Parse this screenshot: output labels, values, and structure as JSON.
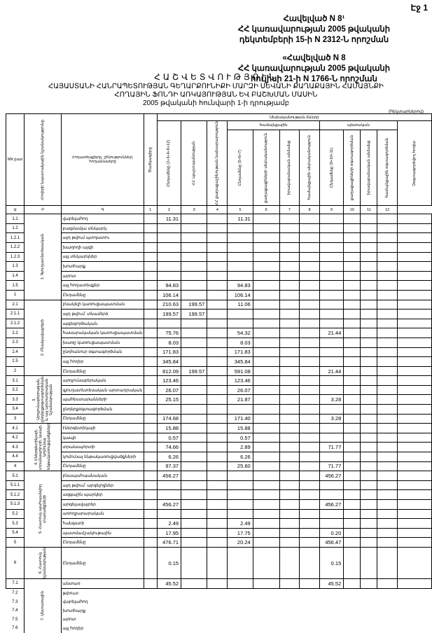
{
  "page_label": "Էջ 1",
  "annex1": {
    "line1": "Հավելված N 8¹",
    "line2": "ՀՀ կառավարության 2005 թվականի",
    "line3": "դեկտեմբերի 15-ի N 2312-Ն որոշման"
  },
  "annex2": {
    "line1": "«Հավելված N 8",
    "line2": "ՀՀ կառավարության 2005 թվականի",
    "line3": "հուլիսի 21-ի N 1766-Ն որոշման"
  },
  "title": "ՀԱՇՎԵՏՎՈՒԹՅՈՒՆ",
  "subtitle1": "ՀԱՅԱՍՏԱՆԻ ՀԱՆՐԱՊԵՏՈՒԹՅԱՆ ԳԵՂԱՐՔՈՒՆԻՔԻ ՄԱՐԶԻ ՍԵՎԱՆԻ ՔԱՂԱՔԱՅԻՆ ՀԱՄԱՅՆՔԻ",
  "subtitle2": "ՀՈՂԱՅԻՆ ՖՈՆԴԻ ԱՌԿԱՅՈՒԹՅԱՆ ԵՎ ԲԱՇԽՄԱՆ ՄԱՍԻՆ",
  "subtitle3": "2005 թվականի հունվարի 1-ի դրությամբ",
  "unit": "(հեկտարներով)",
  "header": {
    "nn": "NN ըստ",
    "purpose": "Հողերի նպատակային նշանակությունը",
    "landtype": "Հողատեսքերը, շինություններ, հողամասերը",
    "code": "Ծածկագիրը",
    "col1": "Ընդամենը (2+3+4+8+12)",
    "col2": "ՀՀ պաշտպանության",
    "col3": "ՀՀ քաղաքաշինության նախարարություն",
    "ownership": "Սեփականության ձևերը",
    "community": "համայնքային",
    "state": "պետական",
    "col4": "Ընդամենը (5+6+7)",
    "col5": "քաղաքացիների սեփականություն",
    "col6": "իրավաբանական անձանց",
    "col7": "համայնքային սեփականություն",
    "col8": "Ընդամենը (9+10+11)",
    "col9": "քաղաքացիների օգտագործման",
    "col10": "իրավաբանական անձանց",
    "col11": "համայնքային օգտագործման",
    "col12": "Չօգտագործվող հողեր",
    "nums": [
      "Ա",
      "Բ",
      "Գ",
      "1",
      "2",
      "3",
      "4",
      "5",
      "6",
      "7",
      "8",
      "9",
      "10",
      "11",
      "12"
    ]
  },
  "groups": [
    {
      "label": "1. Գյուղատնտեսական",
      "rows": [
        {
          "code": "1.1",
          "name": "վարելահող",
          "v1": "11.31",
          "v4": "11.31"
        },
        {
          "code": "1.2",
          "name": "բազմամյա տնկարկ"
        },
        {
          "code": "1.2.1",
          "name": "այդ թվում պտղատու"
        },
        {
          "code": "1.2.2",
          "name": "խաղողի այգի"
        },
        {
          "code": "1.2.3",
          "name": "այլ տնկարկներ"
        },
        {
          "code": "1.3",
          "name": "խոտհարք"
        },
        {
          "code": "1.4",
          "name": "արոտ"
        },
        {
          "code": "1.5",
          "name": "այլ հողատեսքեր",
          "v1": "94.83",
          "v4": "94.83"
        },
        {
          "code": "1",
          "name": "Ընդամենը",
          "v1": "106.14",
          "v4": "106.14"
        }
      ]
    },
    {
      "label": "2. Բնակավայրերի",
      "rows": [
        {
          "code": "2.1",
          "name": "բնակելի կառուցապատման",
          "v1": "210.63",
          "v2": "199.57",
          "v4": "11.06"
        },
        {
          "code": "2.1.1",
          "name": "այդ թվում՝ տնամերձ",
          "v1": "199.57",
          "v2": "199.57"
        },
        {
          "code": "2.1.2",
          "name": "այգեգործական"
        },
        {
          "code": "2.2",
          "name": "հասարակական կառուցապատման",
          "v1": "75.76",
          "v4": "54.32",
          "v8": "21.44"
        },
        {
          "code": "2.3",
          "name": "խառը կառուցապատման",
          "v1": "8.03",
          "v4": "8.03"
        },
        {
          "code": "2.4",
          "name": "ընդհանուր օգտագործման",
          "v1": "171.83",
          "v4": "171.83"
        },
        {
          "code": "2.5",
          "name": "այլ հողեր",
          "v1": "345.84",
          "v4": "345.84"
        },
        {
          "code": "2",
          "name": "Ընդամենը",
          "v1": "812.09",
          "v2": "199.57",
          "v4": "591.08",
          "v8": "21.44"
        }
      ]
    },
    {
      "label": "3. Արդյունաբերության, ընդերքօգտագործման և այլ արտադրական նշանակության",
      "rows": [
        {
          "code": "3.1",
          "name": "արդյունաբերական",
          "v1": "123.46",
          "v4": "123.46"
        },
        {
          "code": "3.2",
          "name": "գյուղատնտեսական արտադրական",
          "v1": "26.07",
          "v4": "26.07"
        },
        {
          "code": "3.3",
          "name": "պահեստարանների",
          "v1": "25.15",
          "v4": "21.87",
          "v8": "3.28"
        },
        {
          "code": "3.4",
          "name": "ընդերքօգտագործման"
        },
        {
          "code": "3",
          "name": "Ընդամենը",
          "v1": "174.68",
          "v4": "171.40",
          "v8": "3.28"
        }
      ]
    },
    {
      "label": "4. Էներգետիկայի, տրանսպորտի, կապի, կոմունալ ենթակառուցվածքների",
      "rows": [
        {
          "code": "4.1",
          "name": "էներգետիկայի",
          "v1": "15.88",
          "v4": "15.88"
        },
        {
          "code": "4.2",
          "name": "կապի",
          "v1": "0.57",
          "v4": "0.57"
        },
        {
          "code": "4.3",
          "name": "տրանսպորտի",
          "v1": "74.66",
          "v4": "2.89",
          "v8": "71.77"
        },
        {
          "code": "4.4",
          "name": "կոմունալ ենթակառուցվածքների",
          "v1": "6.26",
          "v4": "6.26"
        },
        {
          "code": "4",
          "name": "Ընդամենը",
          "v1": "97.37",
          "v4": "25.60",
          "v8": "71.77"
        }
      ]
    },
    {
      "label": "5. Հատուկ պահպանվող տարածքների",
      "rows": [
        {
          "code": "5.1",
          "name": "բնապահպանական",
          "v1": "456.27",
          "v8": "456.27"
        },
        {
          "code": "5.1.1",
          "name": "այդ թվում՝ արգելոցներ"
        },
        {
          "code": "5.1.2",
          "name": "ազգային պարկեր"
        },
        {
          "code": "5.1.3",
          "name": "արգելավայրեր",
          "v1": "456.27",
          "v8": "456.27"
        },
        {
          "code": "5.2",
          "name": "առողջարարական"
        },
        {
          "code": "5.3",
          "name": "հանգստի",
          "v1": "2.49",
          "v4": "2.49"
        },
        {
          "code": "5.4",
          "name": "պատմամշակութային",
          "v1": "17.95",
          "v4": "17.75",
          "v8": "0.20"
        },
        {
          "code": "5",
          "name": "Ընդամենը",
          "v1": "476.71",
          "v4": "20.24",
          "v8": "456.47"
        }
      ]
    },
    {
      "label": "6. Հատուկ նշանակության",
      "tall": true,
      "rows": [
        {
          "code": "6",
          "name": "Ընդամենը",
          "v1": "0.15",
          "v8": "0.15"
        }
      ]
    },
    {
      "label": "7. Անտառային",
      "rows": [
        {
          "code": "7.1",
          "name": "անտառ",
          "v1": "45.52",
          "v8": "45.52"
        },
        {
          "code": "7.2",
          "name": "թփուտ",
          "open": true
        },
        {
          "code": "7.3",
          "name": "վարելահող",
          "open": true
        },
        {
          "code": "7.4",
          "name": "խոտհարք",
          "open": true
        },
        {
          "code": "7.5",
          "name": "արոտ",
          "open": true
        },
        {
          "code": "7.6",
          "name": "այլ հողեր",
          "open": true
        }
      ]
    }
  ]
}
